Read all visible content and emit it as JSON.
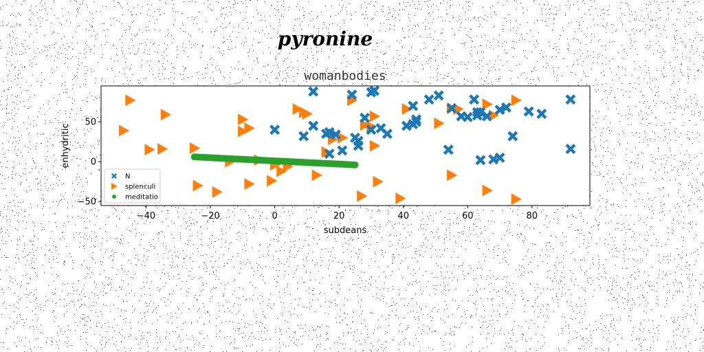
{
  "chart_data": {
    "type": "scatter",
    "suptitle": "pyronine",
    "title": "womanbodies",
    "xlabel": "subdeans",
    "ylabel": "enhydritic",
    "xlim": [
      -54,
      98
    ],
    "ylim": [
      -55,
      95
    ],
    "xticks": [
      -40,
      -20,
      0,
      20,
      40,
      60,
      80
    ],
    "yticks": [
      -50,
      0,
      50
    ],
    "grid": false,
    "legend_position": "lower-left",
    "series": [
      {
        "name": "N",
        "color": "#1f77b4",
        "marker": "X",
        "points": [
          [
            12,
            88
          ],
          [
            24,
            84
          ],
          [
            30,
            87
          ],
          [
            31,
            89
          ],
          [
            43,
            70
          ],
          [
            48,
            78
          ],
          [
            51,
            83
          ],
          [
            55,
            67
          ],
          [
            58,
            57
          ],
          [
            60,
            56
          ],
          [
            62,
            78
          ],
          [
            63,
            58
          ],
          [
            63,
            62
          ],
          [
            64,
            62
          ],
          [
            66,
            57
          ],
          [
            70,
            65
          ],
          [
            72,
            68
          ],
          [
            79,
            63
          ],
          [
            83,
            60
          ],
          [
            92,
            78
          ],
          [
            0,
            40
          ],
          [
            9,
            32
          ],
          [
            12,
            45
          ],
          [
            16,
            35
          ],
          [
            17,
            37
          ],
          [
            19,
            34
          ],
          [
            25,
            30
          ],
          [
            26,
            26
          ],
          [
            26,
            20
          ],
          [
            28,
            55
          ],
          [
            30,
            40
          ],
          [
            33,
            42
          ],
          [
            35,
            35
          ],
          [
            41,
            45
          ],
          [
            43,
            47
          ],
          [
            44,
            53
          ],
          [
            44,
            50
          ],
          [
            54,
            15
          ],
          [
            64,
            2
          ],
          [
            68,
            3
          ],
          [
            70,
            5
          ],
          [
            74,
            32
          ],
          [
            92,
            16
          ],
          [
            21,
            14
          ],
          [
            17,
            10
          ]
        ]
      },
      {
        "name": "splenculi",
        "color": "#ff7f0e",
        "marker": "triangle-right",
        "points": [
          [
            -45,
            77
          ],
          [
            -47,
            39
          ],
          [
            -34,
            59
          ],
          [
            -39,
            15
          ],
          [
            -35,
            16
          ],
          [
            -10,
            53
          ],
          [
            -10,
            38
          ],
          [
            -8,
            42
          ],
          [
            -25,
            17
          ],
          [
            7,
            66
          ],
          [
            9,
            62
          ],
          [
            10,
            60
          ],
          [
            16,
            12
          ],
          [
            18,
            28
          ],
          [
            21,
            30
          ],
          [
            24,
            77
          ],
          [
            28,
            46
          ],
          [
            30,
            44
          ],
          [
            31,
            57
          ],
          [
            31,
            20
          ],
          [
            41,
            66
          ],
          [
            51,
            48
          ],
          [
            55,
            67
          ],
          [
            57,
            66
          ],
          [
            66,
            72
          ],
          [
            68,
            58
          ],
          [
            75,
            77
          ],
          [
            -24,
            -30
          ],
          [
            -18,
            -38
          ],
          [
            -8,
            -28
          ],
          [
            -1,
            -24
          ],
          [
            2,
            -12
          ],
          [
            4,
            -6
          ],
          [
            -14,
            0
          ],
          [
            13,
            -17
          ],
          [
            27,
            -43
          ],
          [
            32,
            -25
          ],
          [
            39,
            -46
          ],
          [
            55,
            -17
          ],
          [
            66,
            -36
          ],
          [
            75,
            -47
          ],
          [
            0,
            -4
          ],
          [
            -5,
            2
          ]
        ]
      },
      {
        "name": "meditatio",
        "color": "#2ca02c",
        "marker": "circle",
        "line": {
          "x_start": -25,
          "y_start": 6,
          "x_end": 25,
          "y_end": -4,
          "count": 90
        }
      }
    ]
  }
}
